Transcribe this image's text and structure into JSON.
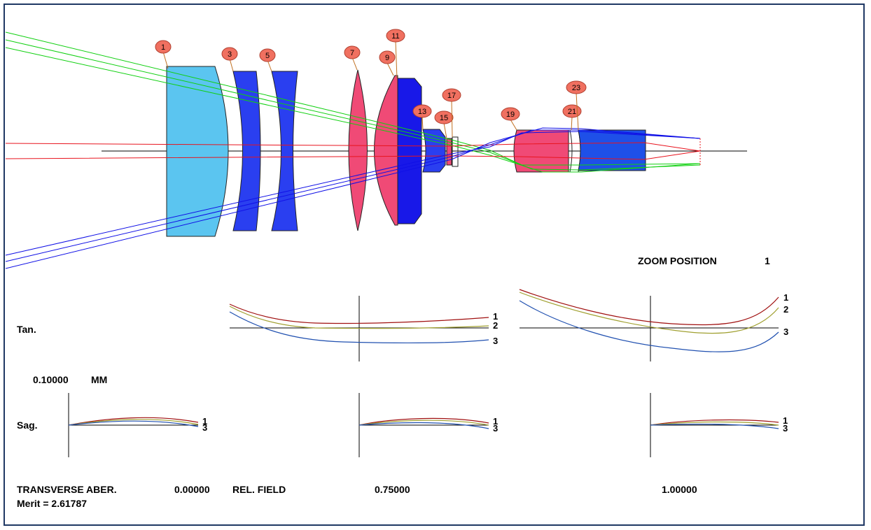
{
  "colors": {
    "frame": "#1f3864",
    "ray_red": "#e8141e",
    "ray_green": "#10d010",
    "ray_blue": "#1010e6",
    "lens_cyan": "#5bc5f0",
    "lens_blue": "#2a3ff0",
    "lens_pink": "#f04a76",
    "tag_fill": "#f07060",
    "curve_1": "#a01010",
    "curve_2": "#a0a030",
    "curve_3": "#2050b0"
  },
  "surface_tags": [
    "1",
    "3",
    "5",
    "7",
    "9",
    "11",
    "13",
    "15",
    "17",
    "19",
    "21",
    "23"
  ],
  "zoom": {
    "label": "ZOOM POSITION",
    "value": "1"
  },
  "rows": {
    "tan": "Tan.",
    "sag": "Sag."
  },
  "scale": {
    "value": "0.10000",
    "unit": "MM"
  },
  "curve_labels": [
    "1",
    "2",
    "3"
  ],
  "footer": {
    "title": "TRANSVERSE ABER.",
    "field_0": "0.00000",
    "rel_field": "REL. FIELD",
    "field_1": "0.75000",
    "field_2": "1.00000",
    "merit": "Merit = 2.61787"
  }
}
